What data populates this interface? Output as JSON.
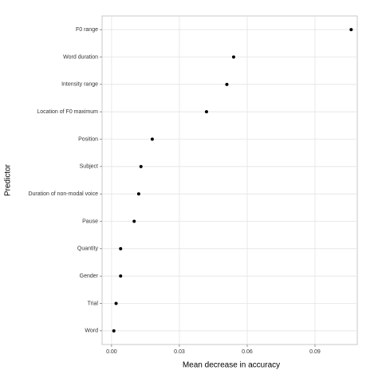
{
  "chart_data": {
    "type": "dot",
    "xlabel": "Mean decrease in accuracy",
    "ylabel": "Predictor",
    "categories": [
      "F0 range",
      "Word duration",
      "Intensity range",
      "Location of F0 maximum",
      "Position",
      "Subject",
      "Duration of non-modal voice",
      "Pause",
      "Quantity",
      "Gender",
      "Trial",
      "Word"
    ],
    "values": [
      0.106,
      0.054,
      0.051,
      0.042,
      0.018,
      0.013,
      0.012,
      0.01,
      0.004,
      0.004,
      0.002,
      0.001
    ],
    "color": "#000000",
    "xlim": [
      -0.0042,
      0.1087
    ],
    "xticks": [
      {
        "value": 0,
        "label": "0.00"
      },
      0.03,
      0.06,
      0.09
    ],
    "grid": true
  }
}
